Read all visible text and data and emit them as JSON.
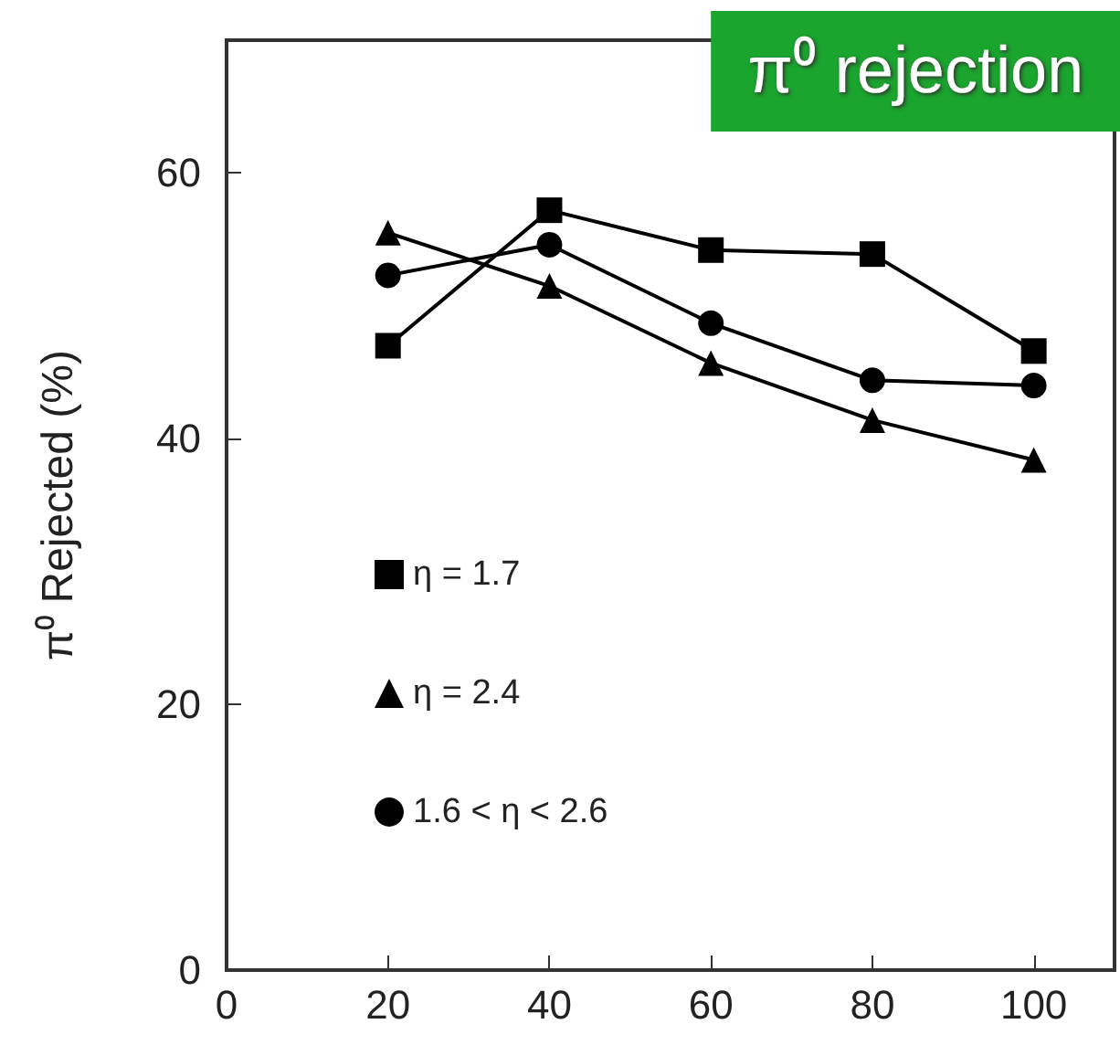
{
  "chart_data": {
    "type": "line",
    "title": "π⁰ rejection",
    "ylabel": "π⁰ Rejected (%)",
    "x": [
      20,
      40,
      60,
      80,
      100
    ],
    "series": [
      {
        "name": "η = 1.7",
        "color": "#000000",
        "marker": "square",
        "values": [
          47,
          57.2,
          54.2,
          53.9,
          46.6
        ]
      },
      {
        "name": "η = 2.4",
        "color": "#000000",
        "marker": "triangle",
        "values": [
          55.5,
          51.5,
          45.7,
          41.4,
          38.4
        ]
      },
      {
        "name": "1.6 < η < 2.6",
        "color": "#000000",
        "marker": "circle",
        "values": [
          52.3,
          54.6,
          48.7,
          44.4,
          44.0
        ]
      }
    ],
    "xlim": [
      0,
      110
    ],
    "xticks": [
      0,
      20,
      40,
      60,
      80,
      100
    ],
    "ylim": [
      0,
      70
    ],
    "yticks": [
      0,
      20,
      40,
      60
    ],
    "grid": false,
    "legend": "left",
    "line_style": "solid"
  }
}
